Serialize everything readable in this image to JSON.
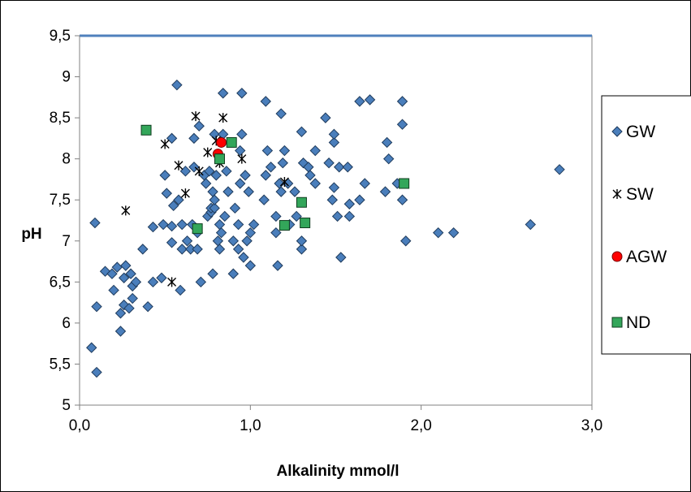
{
  "chart_data": {
    "type": "scatter",
    "xlabel": "Alkalinity mmol/l",
    "ylabel": "pH",
    "xlim": [
      0,
      3
    ],
    "ylim": [
      5,
      9.5
    ],
    "xticks": [
      "0,0",
      "1,0",
      "2,0",
      "3,0"
    ],
    "xtick_values": [
      0,
      1,
      2,
      3
    ],
    "yticks": [
      "5",
      "5,5",
      "6",
      "6,5",
      "7",
      "7,5",
      "8",
      "8,5",
      "9",
      "9,5"
    ],
    "ytick_values": [
      5,
      5.5,
      6,
      6.5,
      7,
      7.5,
      8,
      8.5,
      9,
      9.5
    ],
    "grid": false,
    "legend_position": "right",
    "reference_line": {
      "y": 9.5,
      "color": "#4f81bd"
    },
    "series": [
      {
        "name": "GW",
        "marker": "diamond",
        "color": "#4a7ebb",
        "points": [
          [
            0.07,
            5.7
          ],
          [
            0.1,
            5.4
          ],
          [
            0.1,
            6.2
          ],
          [
            0.09,
            7.22
          ],
          [
            0.15,
            6.63
          ],
          [
            0.19,
            6.6
          ],
          [
            0.2,
            6.4
          ],
          [
            0.22,
            6.68
          ],
          [
            0.24,
            6.12
          ],
          [
            0.24,
            5.9
          ],
          [
            0.26,
            6.22
          ],
          [
            0.26,
            6.55
          ],
          [
            0.27,
            6.7
          ],
          [
            0.29,
            6.18
          ],
          [
            0.3,
            6.6
          ],
          [
            0.31,
            6.3
          ],
          [
            0.31,
            6.45
          ],
          [
            0.33,
            6.5
          ],
          [
            0.37,
            6.9
          ],
          [
            0.4,
            6.2
          ],
          [
            0.43,
            7.17
          ],
          [
            0.43,
            6.5
          ],
          [
            0.48,
            6.55
          ],
          [
            0.49,
            7.2
          ],
          [
            0.5,
            7.8
          ],
          [
            0.51,
            7.58
          ],
          [
            0.54,
            8.25
          ],
          [
            0.54,
            6.98
          ],
          [
            0.54,
            7.18
          ],
          [
            0.55,
            7.43
          ],
          [
            0.57,
            8.9
          ],
          [
            0.58,
            7.5
          ],
          [
            0.59,
            6.4
          ],
          [
            0.6,
            7.2
          ],
          [
            0.6,
            6.9
          ],
          [
            0.62,
            7.85
          ],
          [
            0.63,
            7.0
          ],
          [
            0.65,
            6.9
          ],
          [
            0.66,
            7.2
          ],
          [
            0.67,
            7.9
          ],
          [
            0.67,
            8.25
          ],
          [
            0.69,
            6.9
          ],
          [
            0.69,
            7.1
          ],
          [
            0.7,
            8.4
          ],
          [
            0.71,
            6.5
          ],
          [
            0.73,
            7.8
          ],
          [
            0.74,
            7.7
          ],
          [
            0.75,
            7.3
          ],
          [
            0.76,
            7.85
          ],
          [
            0.77,
            7.35
          ],
          [
            0.77,
            7.4
          ],
          [
            0.78,
            7.6
          ],
          [
            0.78,
            6.6
          ],
          [
            0.79,
            7.4
          ],
          [
            0.79,
            7.5
          ],
          [
            0.79,
            8.3
          ],
          [
            0.8,
            7.8
          ],
          [
            0.81,
            7.0
          ],
          [
            0.82,
            7.2
          ],
          [
            0.82,
            6.9
          ],
          [
            0.83,
            7.1
          ],
          [
            0.84,
            8.8
          ],
          [
            0.84,
            8.3
          ],
          [
            0.85,
            7.3
          ],
          [
            0.86,
            7.85
          ],
          [
            0.87,
            7.6
          ],
          [
            0.9,
            6.6
          ],
          [
            0.9,
            7.0
          ],
          [
            0.91,
            7.4
          ],
          [
            0.93,
            6.9
          ],
          [
            0.93,
            7.2
          ],
          [
            0.94,
            8.1
          ],
          [
            0.94,
            7.7
          ],
          [
            0.95,
            8.8
          ],
          [
            0.95,
            8.3
          ],
          [
            0.96,
            6.8
          ],
          [
            0.97,
            7.8
          ],
          [
            0.98,
            7.0
          ],
          [
            0.99,
            7.6
          ],
          [
            1.0,
            6.7
          ],
          [
            1.0,
            7.1
          ],
          [
            1.02,
            7.2
          ],
          [
            1.08,
            7.5
          ],
          [
            1.09,
            7.8
          ],
          [
            1.09,
            8.7
          ],
          [
            1.1,
            8.1
          ],
          [
            1.12,
            7.9
          ],
          [
            1.15,
            7.3
          ],
          [
            1.15,
            7.1
          ],
          [
            1.16,
            6.7
          ],
          [
            1.17,
            7.7
          ],
          [
            1.18,
            8.55
          ],
          [
            1.18,
            7.6
          ],
          [
            1.19,
            7.95
          ],
          [
            1.2,
            8.1
          ],
          [
            1.22,
            7.7
          ],
          [
            1.23,
            7.2
          ],
          [
            1.26,
            7.6
          ],
          [
            1.27,
            7.3
          ],
          [
            1.3,
            6.9
          ],
          [
            1.3,
            7.0
          ],
          [
            1.3,
            8.33
          ],
          [
            1.31,
            7.95
          ],
          [
            1.34,
            7.9
          ],
          [
            1.35,
            7.8
          ],
          [
            1.38,
            8.1
          ],
          [
            1.38,
            7.7
          ],
          [
            1.44,
            8.5
          ],
          [
            1.46,
            7.95
          ],
          [
            1.48,
            7.5
          ],
          [
            1.49,
            8.2
          ],
          [
            1.49,
            8.3
          ],
          [
            1.49,
            7.65
          ],
          [
            1.51,
            7.3
          ],
          [
            1.52,
            7.9
          ],
          [
            1.53,
            6.8
          ],
          [
            1.57,
            7.9
          ],
          [
            1.58,
            7.3
          ],
          [
            1.58,
            7.45
          ],
          [
            1.64,
            8.7
          ],
          [
            1.64,
            7.5
          ],
          [
            1.67,
            7.7
          ],
          [
            1.7,
            8.72
          ],
          [
            1.79,
            7.6
          ],
          [
            1.8,
            8.2
          ],
          [
            1.81,
            8.0
          ],
          [
            1.86,
            7.7
          ],
          [
            1.89,
            8.7
          ],
          [
            1.89,
            8.42
          ],
          [
            1.89,
            7.5
          ],
          [
            1.91,
            7.0
          ],
          [
            2.1,
            7.1
          ],
          [
            2.19,
            7.1
          ],
          [
            2.64,
            7.2
          ],
          [
            2.81,
            7.87
          ]
        ]
      },
      {
        "name": "SW",
        "marker": "asterisk",
        "color": "#000000",
        "points": [
          [
            0.27,
            7.37
          ],
          [
            0.5,
            8.18
          ],
          [
            0.54,
            6.5
          ],
          [
            0.58,
            7.92
          ],
          [
            0.62,
            7.58
          ],
          [
            0.68,
            8.52
          ],
          [
            0.7,
            7.85
          ],
          [
            0.75,
            8.08
          ],
          [
            0.8,
            8.22
          ],
          [
            0.82,
            7.95
          ],
          [
            0.84,
            8.5
          ],
          [
            0.95,
            8.0
          ],
          [
            1.2,
            7.72
          ]
        ]
      },
      {
        "name": "AGW",
        "marker": "circle",
        "color": "#ff0000",
        "points": [
          [
            0.81,
            8.06
          ],
          [
            0.83,
            8.2
          ]
        ]
      },
      {
        "name": "ND",
        "marker": "square",
        "color": "#33a65a",
        "points": [
          [
            0.39,
            8.35
          ],
          [
            0.69,
            7.15
          ],
          [
            0.82,
            8.0
          ],
          [
            0.89,
            8.2
          ],
          [
            1.2,
            7.19
          ],
          [
            1.3,
            7.47
          ],
          [
            1.32,
            7.22
          ],
          [
            1.9,
            7.7
          ]
        ]
      }
    ]
  }
}
